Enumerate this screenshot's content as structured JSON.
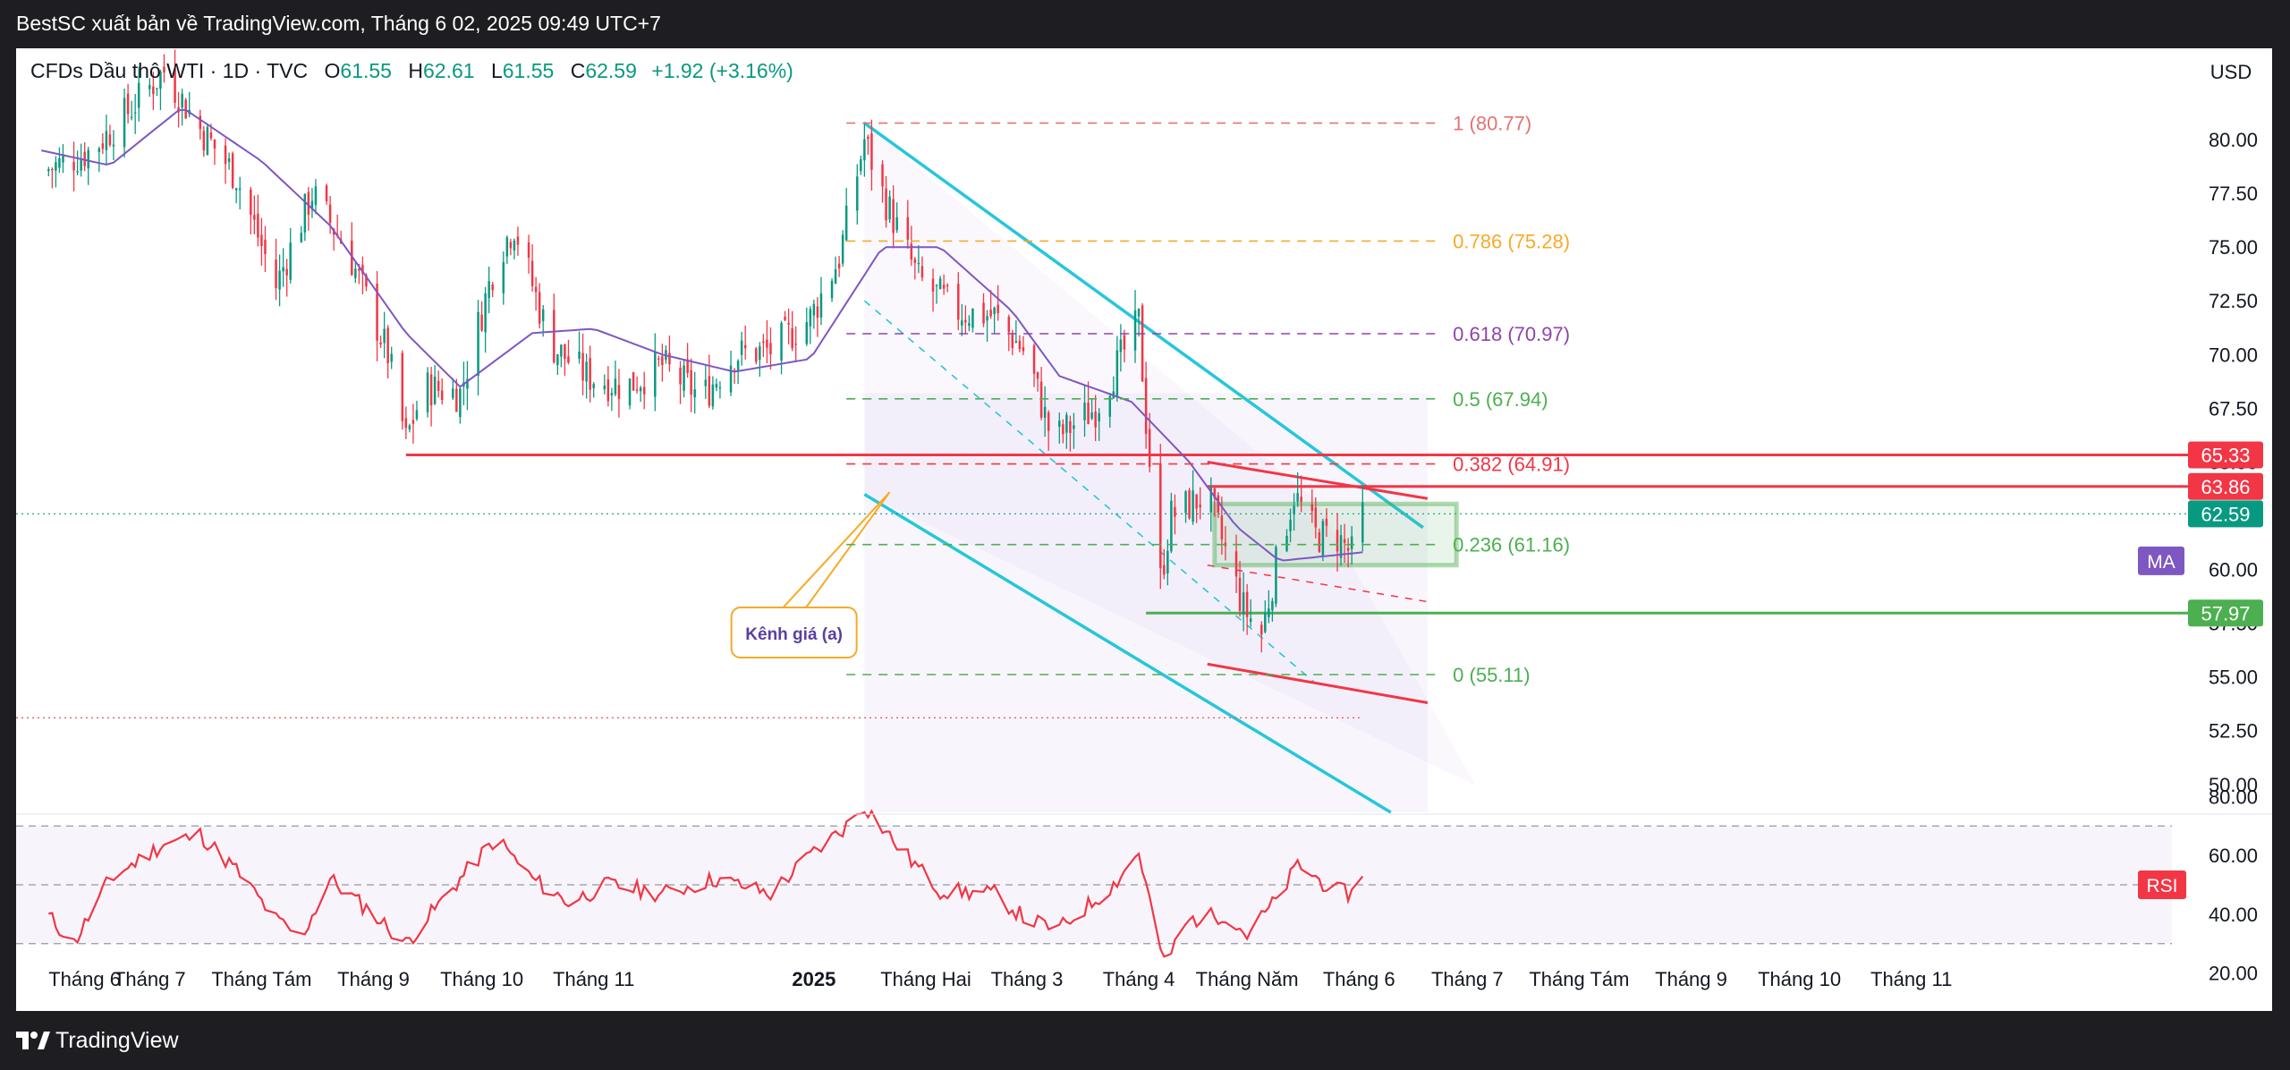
{
  "header": {
    "title": "BestSC xuất bản về TradingView.com, Tháng 6 02, 2025 09:49 UTC+7"
  },
  "footer": {
    "brand": "TradingView"
  },
  "legend": {
    "symbol": "CFDs Dầu thô WTI · 1D · TVC",
    "open_label": "O",
    "open": "61.55",
    "high_label": "H",
    "high": "62.61",
    "low_label": "L",
    "low": "61.55",
    "close_label": "C",
    "close": "62.59",
    "change": "+1.92 (+3.16%)"
  },
  "currency": "USD",
  "colors": {
    "up": "#089981",
    "down": "#f23645",
    "ma": "#7e57c2",
    "channel": "#26c6da",
    "support": "#4caf50",
    "fib_1": "#e57373",
    "fib_0786": "#f7a928",
    "fib_0618": "#8e44ad",
    "fib_05": "#4caf50",
    "fib_0382": "#f23645",
    "fib_0236": "#4caf50",
    "fib_0": "#4caf50"
  },
  "chart_data": [
    {
      "type": "candlestick",
      "title": "CFDs Dầu thô WTI · 1D · TVC",
      "x_tick_labels": [
        "Tháng 6",
        "Tháng 7",
        "Tháng Tám",
        "Tháng 9",
        "Tháng 10",
        "Tháng 11",
        "2025",
        "Tháng Hai",
        "Tháng 3",
        "Tháng 4",
        "Tháng Năm",
        "Tháng 6",
        "Tháng 7",
        "Tháng Tám",
        "Tháng 9",
        "Tháng 10",
        "Tháng 11"
      ],
      "y_ticks": [
        50.0,
        52.5,
        55.0,
        57.5,
        60.0,
        62.5,
        65.0,
        67.5,
        70.0,
        72.5,
        75.0,
        77.5,
        80.0
      ],
      "ylim": [
        48.7,
        83.0
      ],
      "price_series": [
        [
          "2024-06-01",
          78.5
        ],
        [
          "2024-06-15",
          79.5
        ],
        [
          "2024-06-25",
          81.3
        ],
        [
          "2024-07-05",
          83.2
        ],
        [
          "2024-07-15",
          80.5
        ],
        [
          "2024-07-25",
          78.3
        ],
        [
          "2024-08-05",
          73.2
        ],
        [
          "2024-08-15",
          77.5
        ],
        [
          "2024-08-25",
          74.8
        ],
        [
          "2024-09-05",
          70.0
        ],
        [
          "2024-09-10",
          66.0
        ],
        [
          "2024-09-15",
          68.5
        ],
        [
          "2024-09-25",
          68.2
        ],
        [
          "2024-10-05",
          74.5
        ],
        [
          "2024-10-10",
          76.0
        ],
        [
          "2024-10-20",
          70.5
        ],
        [
          "2024-10-30",
          69.0
        ],
        [
          "2024-11-10",
          68.5
        ],
        [
          "2024-11-20",
          69.5
        ],
        [
          "2024-12-01",
          68.0
        ],
        [
          "2024-12-10",
          70.0
        ],
        [
          "2024-12-20",
          70.2
        ],
        [
          "2024-12-31",
          71.7
        ],
        [
          "2025-01-08",
          74.5
        ],
        [
          "2025-01-15",
          80.0
        ],
        [
          "2025-01-20",
          77.5
        ],
        [
          "2025-01-30",
          73.5
        ],
        [
          "2025-02-10",
          72.0
        ],
        [
          "2025-02-20",
          71.8
        ],
        [
          "2025-03-01",
          70.0
        ],
        [
          "2025-03-08",
          66.0
        ],
        [
          "2025-03-20",
          67.5
        ],
        [
          "2025-04-01",
          71.5
        ],
        [
          "2025-04-03",
          66.9
        ],
        [
          "2025-04-07",
          59.5
        ],
        [
          "2025-04-10",
          62.5
        ],
        [
          "2025-04-20",
          63.5
        ],
        [
          "2025-04-30",
          58.2
        ],
        [
          "2025-05-05",
          57.0
        ],
        [
          "2025-05-10",
          61.0
        ],
        [
          "2025-05-14",
          63.5
        ],
        [
          "2025-05-20",
          61.6
        ],
        [
          "2025-05-26",
          61.5
        ],
        [
          "2025-05-30",
          60.7
        ],
        [
          "2025-06-02",
          62.59
        ]
      ],
      "ma_series": [
        [
          "2024-06-01",
          79.5
        ],
        [
          "2024-06-20",
          78.8
        ],
        [
          "2024-07-10",
          81.5
        ],
        [
          "2024-08-01",
          79.0
        ],
        [
          "2024-08-20",
          76.0
        ],
        [
          "2024-09-10",
          71.0
        ],
        [
          "2024-09-25",
          68.5
        ],
        [
          "2024-10-15",
          71.0
        ],
        [
          "2024-11-01",
          71.2
        ],
        [
          "2024-11-20",
          70.0
        ],
        [
          "2024-12-10",
          69.2
        ],
        [
          "2024-12-31",
          69.8
        ],
        [
          "2025-01-20",
          75.0
        ],
        [
          "2025-02-05",
          75.0
        ],
        [
          "2025-02-25",
          72.0
        ],
        [
          "2025-03-10",
          69.0
        ],
        [
          "2025-03-30",
          67.8
        ],
        [
          "2025-04-15",
          65.0
        ],
        [
          "2025-04-28",
          62.0
        ],
        [
          "2025-05-10",
          60.4
        ],
        [
          "2025-06-02",
          60.8
        ]
      ],
      "fibonacci": [
        {
          "label": "1 (80.77)",
          "value": 80.77
        },
        {
          "label": "0.786 (75.28)",
          "value": 75.28
        },
        {
          "label": "0.618 (70.97)",
          "value": 70.97
        },
        {
          "label": "0.5 (67.94)",
          "value": 67.94
        },
        {
          "label": "0.382 (64.91)",
          "value": 64.91
        },
        {
          "label": "0.236 (61.16)",
          "value": 61.16
        },
        {
          "label": "0 (55.11)",
          "value": 55.11
        }
      ],
      "price_tags": [
        {
          "label": "65.33",
          "value": 65.33,
          "color": "#f23645"
        },
        {
          "label": "63.86",
          "value": 63.86,
          "color": "#f23645"
        },
        {
          "label": "62.59",
          "value": 62.59,
          "color": "#089981"
        },
        {
          "label": "57.97",
          "value": 57.97,
          "color": "#4caf50"
        }
      ],
      "indicator_tag": "MA",
      "annotation": "Kênh giá (a)",
      "channel": {
        "upper": [
          [
            "2025-01-15",
            80.77
          ],
          [
            "2025-05-20",
            63.2
          ]
        ],
        "lower": [
          [
            "2025-01-15",
            63.5
          ],
          [
            "2025-04-20",
            48.7
          ]
        ],
        "midline": [
          [
            "2025-01-15",
            72.5
          ],
          [
            "2025-05-20",
            54.7
          ]
        ]
      },
      "lines": [
        {
          "kind": "support",
          "from": "2024-09-10",
          "to": "2025-12-31",
          "value": 65.33,
          "color": "#f23645"
        },
        {
          "kind": "resistance",
          "from": "2025-04-20",
          "to": "2025-12-31",
          "value": 63.86,
          "color": "#f23645"
        },
        {
          "kind": "support",
          "from": "2025-04-03",
          "to": "2025-12-31",
          "value": 57.97,
          "color": "#4caf50"
        }
      ]
    },
    {
      "type": "line",
      "name": "RSI",
      "y_ticks": [
        20.0,
        40.0,
        60.0,
        80.0
      ],
      "ylim": [
        15,
        85
      ],
      "bands": [
        70,
        50,
        30
      ],
      "series": [
        {
          "name": "RSI",
          "values": [
            [
              "2024-06-01",
              42
            ],
            [
              "2024-06-10",
              30
            ],
            [
              "2024-06-20",
              52
            ],
            [
              "2024-07-05",
              64
            ],
            [
              "2024-07-15",
              67
            ],
            [
              "2024-07-25",
              55
            ],
            [
              "2024-08-05",
              38
            ],
            [
              "2024-08-12",
              32
            ],
            [
              "2024-08-20",
              52
            ],
            [
              "2024-09-01",
              40
            ],
            [
              "2024-09-10",
              30
            ],
            [
              "2024-09-25",
              52
            ],
            [
              "2024-10-05",
              66
            ],
            [
              "2024-10-15",
              52
            ],
            [
              "2024-10-25",
              44
            ],
            [
              "2024-11-05",
              50
            ],
            [
              "2024-11-20",
              47
            ],
            [
              "2024-12-05",
              52
            ],
            [
              "2024-12-20",
              47
            ],
            [
              "2024-12-31",
              60
            ],
            [
              "2025-01-10",
              70
            ],
            [
              "2025-01-15",
              77
            ],
            [
              "2025-01-25",
              62
            ],
            [
              "2025-02-05",
              48
            ],
            [
              "2025-02-20",
              47
            ],
            [
              "2025-03-01",
              38
            ],
            [
              "2025-03-10",
              35
            ],
            [
              "2025-03-25",
              50
            ],
            [
              "2025-04-01",
              61
            ],
            [
              "2025-04-03",
              50
            ],
            [
              "2025-04-08",
              23
            ],
            [
              "2025-04-15",
              38
            ],
            [
              "2025-04-25",
              40
            ],
            [
              "2025-05-01",
              33
            ],
            [
              "2025-05-10",
              46
            ],
            [
              "2025-05-15",
              57
            ],
            [
              "2025-05-25",
              48
            ],
            [
              "2025-05-30",
              47
            ],
            [
              "2025-06-02",
              54
            ]
          ]
        }
      ],
      "tag": "RSI"
    }
  ]
}
